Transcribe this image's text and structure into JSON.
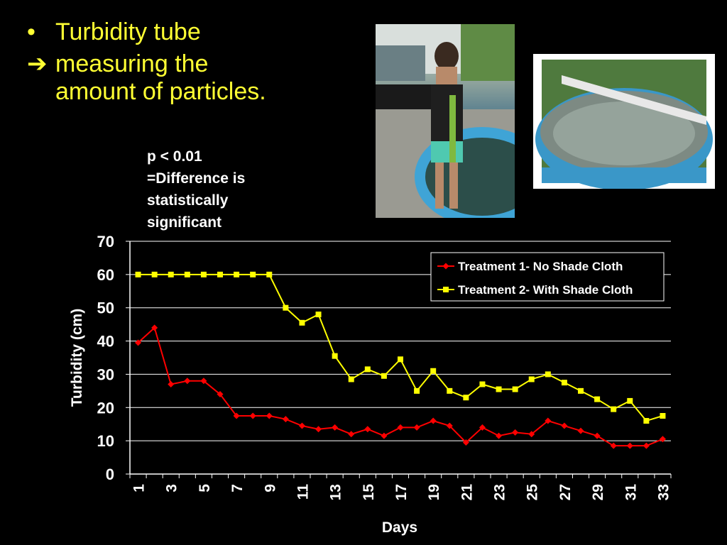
{
  "slide": {
    "bullet1": "Turbidity tube",
    "bullet2_line1": "measuring the",
    "bullet2_line2": "amount of particles.",
    "note_line1": "p < 0.01",
    "note_line2": "=Difference is",
    "note_line3": "statistically",
    "note_line4": "significant"
  },
  "colors": {
    "title_text": "#ffff33",
    "series1": "#ff0000",
    "series2": "#ffff00"
  },
  "chart_data": {
    "type": "line",
    "xlabel": "Days",
    "ylabel": "Turbidity (cm)",
    "ylim": [
      0,
      70
    ],
    "yticks": [
      0,
      10,
      20,
      30,
      40,
      50,
      60,
      70
    ],
    "x": [
      1,
      2,
      3,
      4,
      5,
      6,
      7,
      8,
      9,
      10,
      11,
      12,
      13,
      14,
      15,
      16,
      17,
      18,
      19,
      20,
      21,
      22,
      23,
      24,
      25,
      26,
      27,
      28,
      29,
      30,
      31,
      32,
      33
    ],
    "xtick_labels": [
      "1",
      "3",
      "5",
      "7",
      "9",
      "11",
      "13",
      "15",
      "17",
      "19",
      "21",
      "23",
      "25",
      "27",
      "29",
      "31",
      "33"
    ],
    "grid": "horizontal",
    "legend": "top-right",
    "series": [
      {
        "name": "Treatment 1- No Shade Cloth",
        "marker": "diamond",
        "values": [
          39.5,
          44,
          27,
          28,
          28,
          24,
          17.5,
          17.5,
          17.5,
          16.5,
          14.5,
          13.5,
          14,
          12,
          13.5,
          11.5,
          14,
          14,
          16,
          14.5,
          9.5,
          14,
          11.5,
          12.5,
          12,
          16,
          14.5,
          13,
          11.5,
          8.5,
          8.5,
          8.5,
          10.5
        ]
      },
      {
        "name": "Treatment 2- With Shade Cloth",
        "marker": "square",
        "values": [
          60,
          60,
          60,
          60,
          60,
          60,
          60,
          60,
          60,
          50,
          45.5,
          48,
          35.5,
          28.5,
          31.5,
          29.5,
          34.5,
          25,
          31,
          25,
          23,
          27,
          25.5,
          25.5,
          28.5,
          30,
          27.5,
          25,
          22.5,
          19.5,
          22,
          16,
          17.5
        ]
      }
    ]
  }
}
